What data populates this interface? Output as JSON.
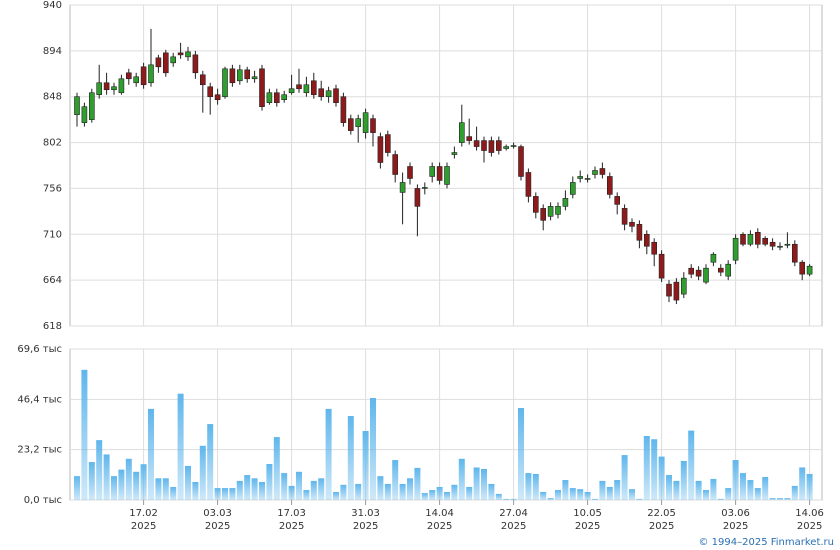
{
  "credit": "© 1994–2025 Finmarket.ru",
  "chart_data": [
    {
      "type": "candlestick",
      "up_color": "#2f9e2f",
      "down_color": "#8e1b1b",
      "ylim": [
        618,
        940
      ],
      "yticks": [
        618,
        664,
        710,
        756,
        802,
        848,
        894,
        940
      ],
      "grid": true,
      "open": [
        830,
        822,
        825,
        850,
        862,
        855,
        852,
        872,
        862,
        878,
        862,
        887,
        892,
        882,
        892,
        888,
        890,
        870,
        858,
        850,
        848,
        876,
        864,
        875,
        866,
        876,
        842,
        852,
        845,
        852,
        860,
        852,
        864,
        856,
        848,
        856,
        848,
        826,
        818,
        812,
        826,
        808,
        810,
        790,
        752,
        778,
        756,
        756,
        768,
        778,
        760,
        790,
        802,
        808,
        804,
        804,
        804,
        804,
        796,
        798,
        798,
        772,
        748,
        736,
        728,
        730,
        738,
        750,
        766,
        766,
        770,
        776,
        768,
        748,
        736,
        722,
        720,
        710,
        702,
        690,
        660,
        662,
        650,
        676,
        674,
        662,
        682,
        676,
        668,
        684,
        710,
        700,
        712,
        706,
        702,
        698,
        700,
        700,
        682,
        670
      ],
      "high": [
        852,
        842,
        856,
        880,
        872,
        862,
        870,
        876,
        872,
        882,
        916,
        890,
        895,
        892,
        902,
        898,
        894,
        874,
        862,
        856,
        878,
        880,
        880,
        878,
        874,
        880,
        856,
        856,
        854,
        870,
        876,
        868,
        872,
        864,
        858,
        860,
        852,
        830,
        830,
        836,
        830,
        812,
        814,
        794,
        772,
        782,
        760,
        762,
        782,
        782,
        782,
        798,
        840,
        826,
        818,
        808,
        808,
        808,
        800,
        802,
        800,
        776,
        752,
        740,
        742,
        742,
        754,
        768,
        774,
        770,
        778,
        782,
        772,
        752,
        740,
        726,
        724,
        714,
        706,
        694,
        664,
        666,
        672,
        680,
        678,
        680,
        692,
        680,
        684,
        710,
        712,
        714,
        716,
        708,
        706,
        702,
        712,
        704,
        684,
        680
      ],
      "low": [
        818,
        818,
        822,
        846,
        850,
        850,
        850,
        860,
        858,
        856,
        858,
        872,
        868,
        878,
        886,
        884,
        866,
        832,
        830,
        840,
        846,
        858,
        860,
        862,
        862,
        834,
        840,
        838,
        842,
        850,
        852,
        848,
        846,
        844,
        842,
        838,
        818,
        810,
        802,
        806,
        798,
        776,
        788,
        762,
        720,
        760,
        708,
        750,
        762,
        760,
        756,
        786,
        798,
        800,
        794,
        782,
        788,
        790,
        794,
        796,
        764,
        742,
        726,
        714,
        724,
        726,
        734,
        746,
        762,
        762,
        766,
        766,
        746,
        730,
        714,
        712,
        696,
        690,
        678,
        662,
        642,
        640,
        646,
        666,
        664,
        660,
        678,
        668,
        664,
        680,
        698,
        698,
        696,
        698,
        694,
        694,
        696,
        678,
        664,
        668
      ],
      "close": [
        848,
        838,
        852,
        862,
        855,
        858,
        866,
        866,
        868,
        860,
        880,
        878,
        872,
        888,
        890,
        893,
        872,
        860,
        848,
        845,
        876,
        862,
        875,
        866,
        868,
        838,
        852,
        842,
        850,
        856,
        856,
        860,
        850,
        848,
        854,
        842,
        822,
        814,
        826,
        832,
        812,
        782,
        792,
        770,
        762,
        766,
        738,
        757,
        778,
        764,
        778,
        792,
        822,
        804,
        798,
        794,
        792,
        794,
        798,
        799,
        768,
        748,
        732,
        724,
        738,
        738,
        746,
        762,
        768,
        766,
        774,
        770,
        750,
        740,
        720,
        718,
        704,
        698,
        690,
        666,
        648,
        644,
        666,
        670,
        668,
        676,
        690,
        672,
        680,
        706,
        700,
        710,
        700,
        700,
        698,
        698,
        700,
        682,
        670,
        678
      ]
    },
    {
      "type": "bar",
      "color": "#5fb6ec",
      "ylim": [
        0,
        69.6
      ],
      "yticks": [
        {
          "value": 0,
          "label": "0,0 тыс"
        },
        {
          "value": 23.2,
          "label": "23,2 тыс"
        },
        {
          "value": 46.4,
          "label": "46,4 тыс"
        },
        {
          "value": 69.6,
          "label": "69,6 тыс"
        }
      ],
      "grid": true,
      "year": "2025",
      "categories": [
        null,
        null,
        null,
        null,
        null,
        null,
        null,
        null,
        null,
        "17.02",
        null,
        null,
        null,
        null,
        null,
        null,
        null,
        null,
        null,
        "03.03",
        null,
        null,
        null,
        null,
        null,
        null,
        null,
        null,
        null,
        "17.03",
        null,
        null,
        null,
        null,
        null,
        null,
        null,
        null,
        null,
        "31.03",
        null,
        null,
        null,
        null,
        null,
        null,
        null,
        null,
        null,
        "14.04",
        null,
        null,
        null,
        null,
        null,
        null,
        null,
        null,
        null,
        "27.04",
        null,
        null,
        null,
        null,
        null,
        null,
        null,
        null,
        null,
        "10.05",
        null,
        null,
        null,
        null,
        null,
        null,
        null,
        null,
        null,
        "22.05",
        null,
        null,
        null,
        null,
        null,
        null,
        null,
        null,
        null,
        "03.06",
        null,
        null,
        null,
        null,
        null,
        null,
        null,
        null,
        null,
        "14.06"
      ],
      "values": [
        11,
        60,
        17.5,
        27.6,
        21,
        11,
        14,
        19,
        13,
        16.5,
        42,
        10,
        10,
        6,
        49,
        15.7,
        8.3,
        25,
        35,
        5.5,
        5.5,
        5.5,
        8.8,
        11.5,
        10,
        8.3,
        16.6,
        29,
        12.4,
        6.5,
        13,
        4.6,
        8.8,
        10,
        42,
        3.7,
        7,
        38.7,
        7.4,
        31.8,
        47,
        11,
        7.4,
        18.4,
        7.4,
        10,
        14.8,
        3.2,
        4.6,
        6,
        3.7,
        7,
        19,
        6,
        15,
        14.3,
        7.4,
        2.8,
        0.5,
        0.5,
        42.4,
        12.4,
        12,
        3.7,
        0.9,
        4.6,
        9.2,
        5.5,
        5,
        3.7,
        0.5,
        8.8,
        6,
        9.2,
        20.7,
        5,
        0.5,
        29.5,
        28,
        20,
        11.5,
        8.8,
        18,
        32,
        8.8,
        4.6,
        9.7,
        0.5,
        5.5,
        18.4,
        12.4,
        9.2,
        5.5,
        10.6,
        0.9,
        0.9,
        0.9,
        6.5,
        15,
        12
      ]
    }
  ]
}
